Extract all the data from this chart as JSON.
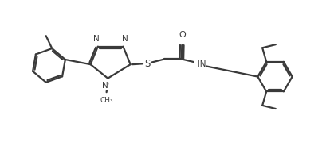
{
  "bg_color": "#ffffff",
  "line_color": "#3a3a3a",
  "line_width": 1.6,
  "figsize": [
    4.19,
    1.84
  ],
  "dpi": 100,
  "xlim": [
    0,
    10
  ],
  "ylim": [
    0,
    4.38
  ]
}
